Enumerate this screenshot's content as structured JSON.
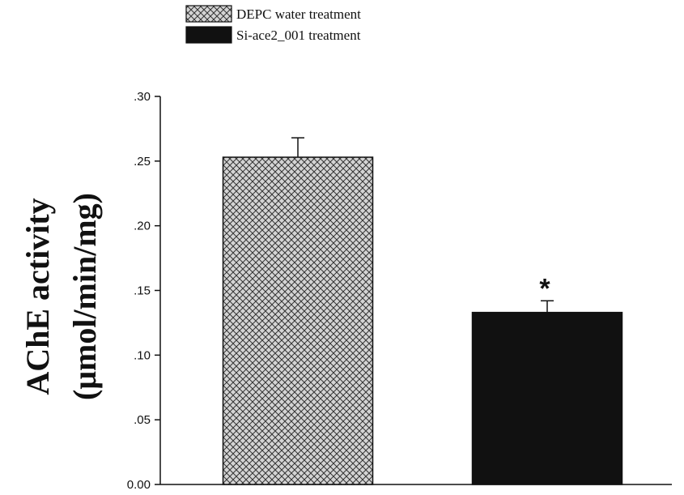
{
  "chart_data": {
    "type": "bar",
    "title": "",
    "xlabel": "",
    "ylabel_lines": [
      "AChE activity",
      "(μmol/min/mg)"
    ],
    "ylim": [
      0,
      0.3
    ],
    "yticks": [
      {
        "value": 0,
        "label": "0.00"
      },
      {
        "value": 0.05,
        "label": ".05"
      },
      {
        "value": 0.1,
        "label": ".10"
      },
      {
        "value": 0.15,
        "label": ".15"
      },
      {
        "value": 0.2,
        "label": ".20"
      },
      {
        "value": 0.25,
        "label": ".25"
      },
      {
        "value": 0.3,
        "label": ".30"
      }
    ],
    "grid": false,
    "legend_position": "top-left",
    "series": [
      {
        "name": "DEPC water treatment",
        "value": 0.253,
        "error": 0.015,
        "fill": "crosshatch",
        "color": "#c8c8c8",
        "annotation": ""
      },
      {
        "name": "Si-ace2_001 treatment",
        "value": 0.133,
        "error": 0.009,
        "fill": "solid",
        "color": "#111111",
        "annotation": "*"
      }
    ]
  }
}
